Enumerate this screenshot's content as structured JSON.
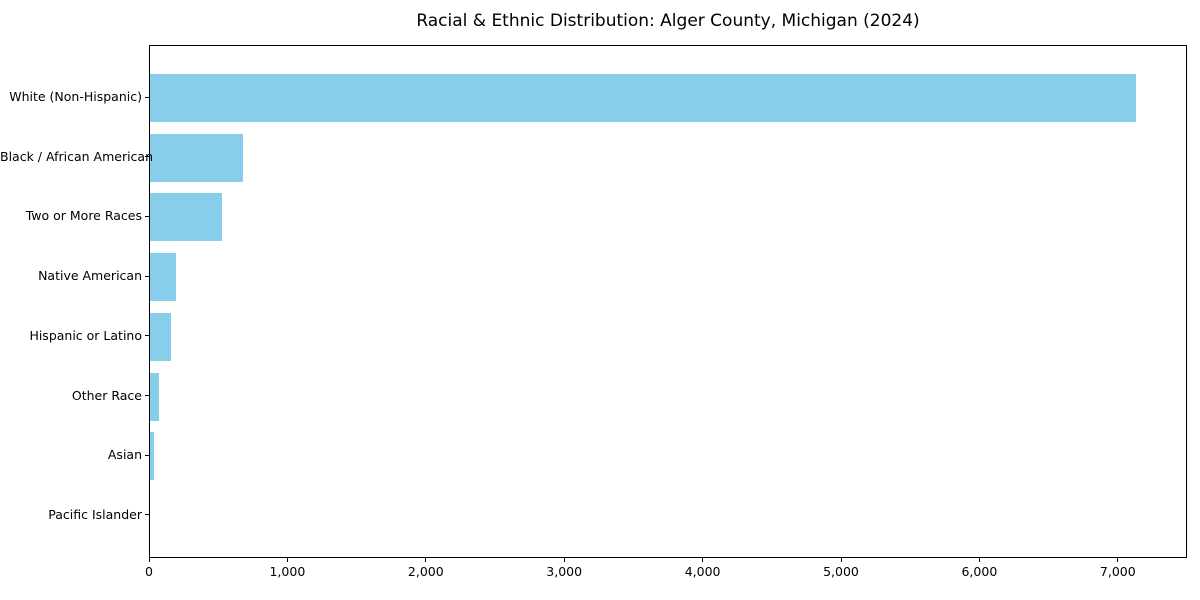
{
  "chart_data": {
    "type": "bar",
    "orientation": "horizontal",
    "title": "Racial & Ethnic Distribution: Alger County, Michigan (2024)",
    "categories": [
      "White (Non-Hispanic)",
      "Black / African American",
      "Two or More Races",
      "Native American",
      "Hispanic or Latino",
      "Other Race",
      "Asian",
      "Pacific Islander"
    ],
    "values": [
      7135,
      670,
      520,
      190,
      155,
      63,
      30,
      0
    ],
    "xlabel": "",
    "ylabel": "",
    "xlim": [
      0,
      7500
    ],
    "xticks": [
      {
        "value": 0,
        "label": "0"
      },
      {
        "value": 1000,
        "label": "1,000"
      },
      {
        "value": 2000,
        "label": "2,000"
      },
      {
        "value": 3000,
        "label": "3,000"
      },
      {
        "value": 4000,
        "label": "4,000"
      },
      {
        "value": 5000,
        "label": "5,000"
      },
      {
        "value": 6000,
        "label": "6,000"
      },
      {
        "value": 7000,
        "label": "7,000"
      }
    ],
    "grid": false,
    "legend": null,
    "bar_color": "#87CEEB",
    "axis_color": "#000000",
    "background_color": "#ffffff"
  }
}
